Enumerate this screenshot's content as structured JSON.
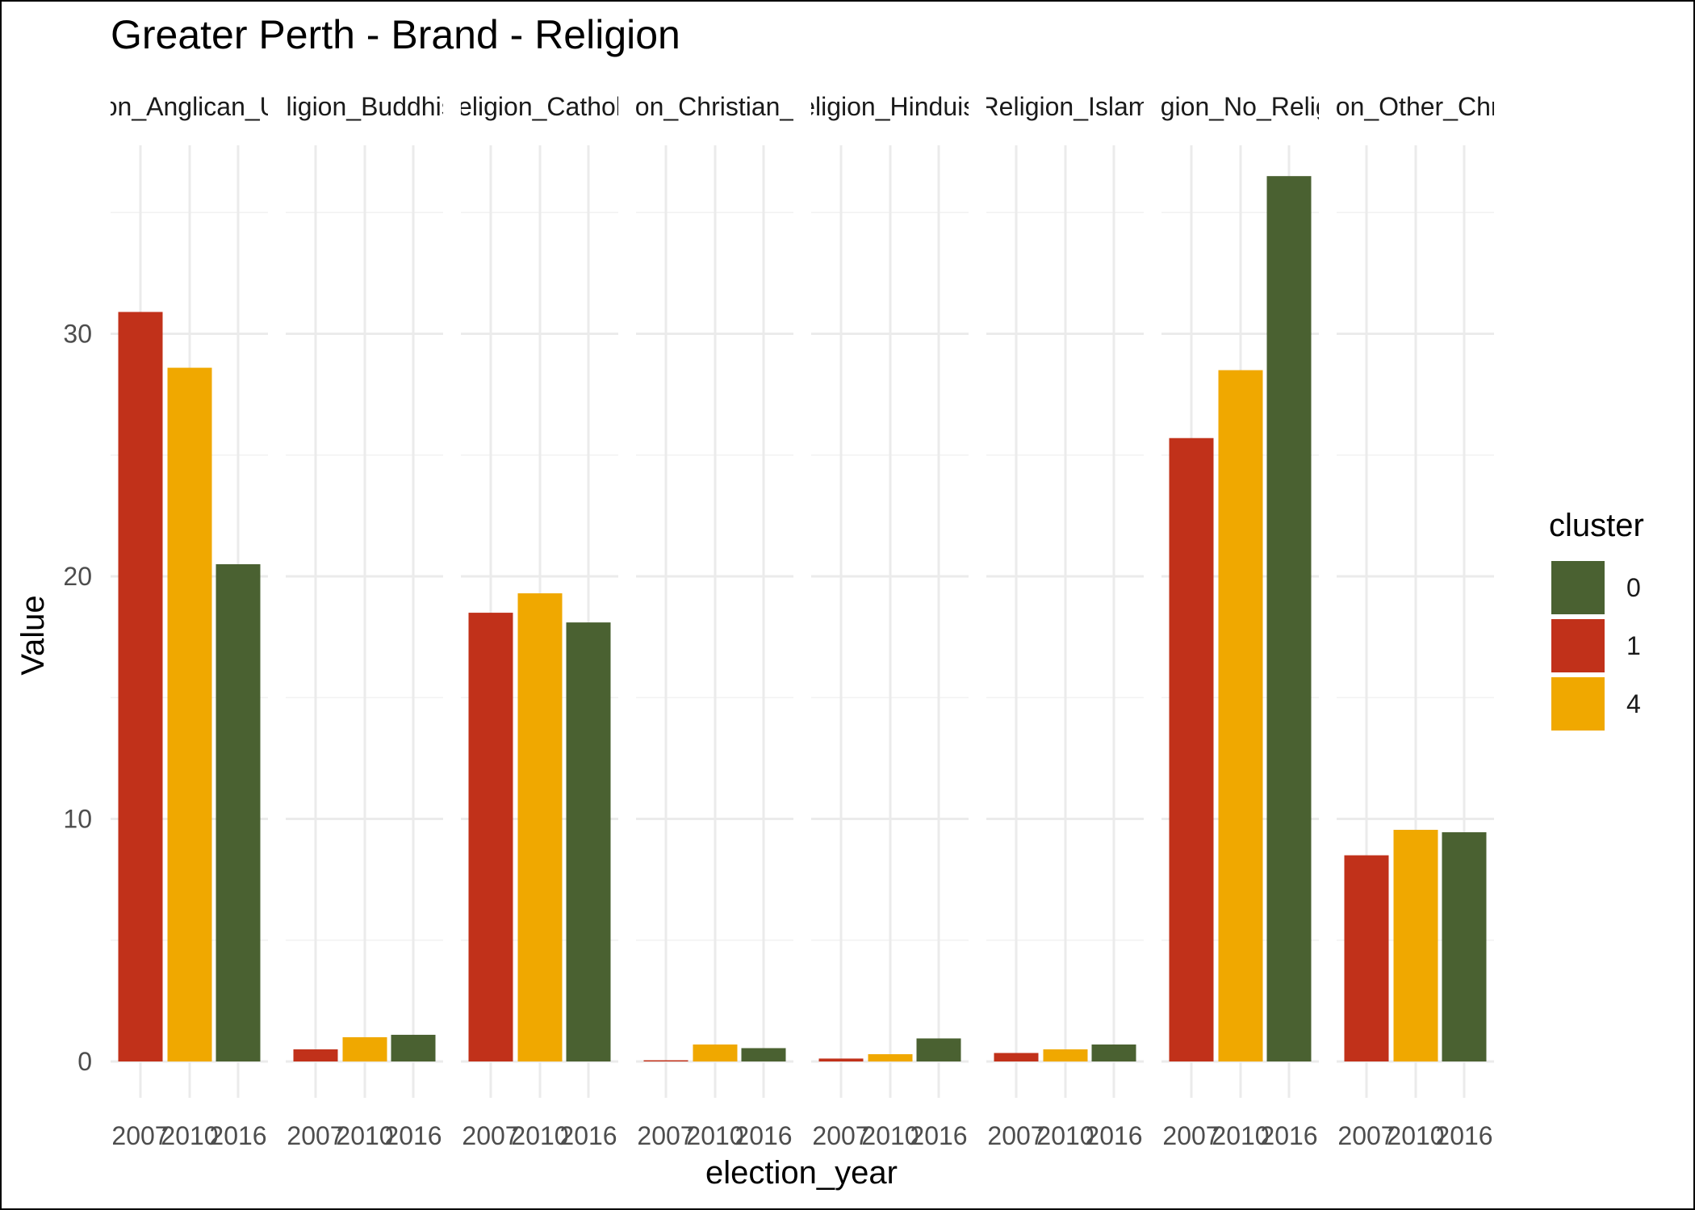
{
  "chart_data": {
    "type": "bar",
    "title": "Greater Perth - Brand - Religion",
    "xlabel": "election_year",
    "ylabel": "Value",
    "ylim": [
      0,
      37.5
    ],
    "y_ticks": [
      0,
      10,
      20,
      30
    ],
    "grid": true,
    "legend_position": "right",
    "legend_title": "cluster",
    "legend": [
      {
        "name": "0",
        "color": "#4a6131"
      },
      {
        "name": "1",
        "color": "#c1311a"
      },
      {
        "name": "4",
        "color": "#f0a800"
      }
    ],
    "x_categories": [
      "2007",
      "2010",
      "2016"
    ],
    "facets": [
      {
        "label": "Religion_Anglican_Uniting",
        "bars": [
          {
            "year": "2007",
            "cluster": "1",
            "value": 30.9
          },
          {
            "year": "2010",
            "cluster": "4",
            "value": 28.6
          },
          {
            "year": "2016",
            "cluster": "0",
            "value": 20.5
          }
        ]
      },
      {
        "label": "Religion_Buddhism",
        "bars": [
          {
            "year": "2007",
            "cluster": "1",
            "value": 0.5
          },
          {
            "year": "2010",
            "cluster": "4",
            "value": 1.0
          },
          {
            "year": "2016",
            "cluster": "0",
            "value": 1.1
          }
        ]
      },
      {
        "label": "Religion_Catholic",
        "bars": [
          {
            "year": "2007",
            "cluster": "1",
            "value": 18.5
          },
          {
            "year": "2010",
            "cluster": "4",
            "value": 19.3
          },
          {
            "year": "2016",
            "cluster": "0",
            "value": 18.1
          }
        ]
      },
      {
        "label": "Religion_Christian_Other",
        "bars": [
          {
            "year": "2007",
            "cluster": "1",
            "value": 0.05
          },
          {
            "year": "2010",
            "cluster": "4",
            "value": 0.7
          },
          {
            "year": "2016",
            "cluster": "0",
            "value": 0.55
          }
        ]
      },
      {
        "label": "Religion_Hinduism",
        "bars": [
          {
            "year": "2007",
            "cluster": "1",
            "value": 0.12
          },
          {
            "year": "2010",
            "cluster": "4",
            "value": 0.3
          },
          {
            "year": "2016",
            "cluster": "0",
            "value": 0.95
          }
        ]
      },
      {
        "label": "Religion_Islam",
        "bars": [
          {
            "year": "2007",
            "cluster": "1",
            "value": 0.35
          },
          {
            "year": "2010",
            "cluster": "4",
            "value": 0.5
          },
          {
            "year": "2016",
            "cluster": "0",
            "value": 0.7
          }
        ]
      },
      {
        "label": "Religion_No_Religion",
        "bars": [
          {
            "year": "2007",
            "cluster": "1",
            "value": 25.7
          },
          {
            "year": "2010",
            "cluster": "4",
            "value": 28.5
          },
          {
            "year": "2016",
            "cluster": "0",
            "value": 36.5
          }
        ]
      },
      {
        "label": "Religion_Other_Christian",
        "bars": [
          {
            "year": "2007",
            "cluster": "1",
            "value": 8.5
          },
          {
            "year": "2010",
            "cluster": "4",
            "value": 9.55
          },
          {
            "year": "2016",
            "cluster": "0",
            "value": 9.45
          }
        ]
      }
    ]
  }
}
